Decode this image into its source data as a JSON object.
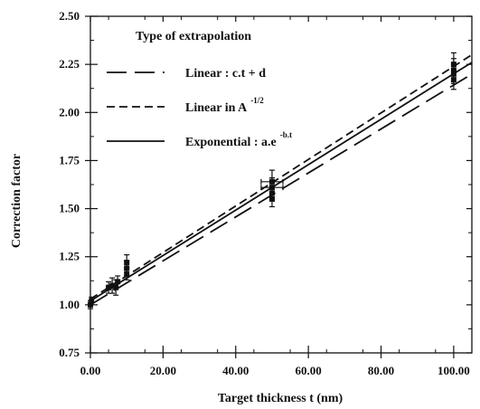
{
  "chart_data": {
    "type": "line",
    "title": "",
    "xlabel": "Target thickness t (nm)",
    "ylabel": "Correction factor",
    "xlim": [
      0,
      105
    ],
    "ylim": [
      0.75,
      2.5
    ],
    "grid": false,
    "legend_position": "top-left",
    "x_ticks": [
      0,
      20,
      40,
      60,
      80,
      100
    ],
    "x_tick_labels": [
      "0.00",
      "20.00",
      "40.00",
      "60.00",
      "80.00",
      "100.00"
    ],
    "y_ticks": [
      0.75,
      1.0,
      1.25,
      1.5,
      1.75,
      2.0,
      2.25,
      2.5
    ],
    "y_tick_labels": [
      "0.75",
      "1.00",
      "1.25",
      "1.50",
      "1.75",
      "2.00",
      "2.25",
      "2.50"
    ],
    "legend": {
      "title": "Type of extrapolation",
      "entries": [
        {
          "label": "Linear : c.t + d",
          "sup": "",
          "style": "long-dash"
        },
        {
          "label": "Linear in A",
          "sup": "-1/2",
          "style": "short-dash"
        },
        {
          "label": "Exponential : a.e",
          "sup": "-b.t",
          "style": "solid"
        }
      ]
    },
    "series": [
      {
        "style": "long-dash",
        "x": [
          0,
          105
        ],
        "y": [
          1.0,
          2.2
        ]
      },
      {
        "style": "short-dash",
        "x": [
          0,
          105
        ],
        "y": [
          1.03,
          2.3
        ]
      },
      {
        "style": "solid",
        "x": [
          0,
          105
        ],
        "y": [
          1.02,
          2.26
        ]
      }
    ],
    "points": [
      {
        "x": 0,
        "y": 1.0,
        "yerr": 0.02,
        "xerr": 0
      },
      {
        "x": 0.3,
        "y": 1.02,
        "yerr": 0.02,
        "xerr": 0
      },
      {
        "x": 5,
        "y": 1.09,
        "yerr": 0.03,
        "xerr": 0.4
      },
      {
        "x": 6,
        "y": 1.1,
        "yerr": 0.04,
        "xerr": 0.5
      },
      {
        "x": 7,
        "y": 1.09,
        "yerr": 0.04,
        "xerr": 0.5
      },
      {
        "x": 7.5,
        "y": 1.12,
        "yerr": 0.03,
        "xerr": 0
      },
      {
        "x": 10,
        "y": 1.16,
        "yerr": 0.03,
        "xerr": 0
      },
      {
        "x": 10,
        "y": 1.19,
        "yerr": 0.04,
        "xerr": 0
      },
      {
        "x": 10,
        "y": 1.22,
        "yerr": 0.04,
        "xerr": 0
      },
      {
        "x": 50,
        "y": 1.55,
        "yerr": 0.04,
        "xerr": 0
      },
      {
        "x": 50,
        "y": 1.58,
        "yerr": 0.04,
        "xerr": 0
      },
      {
        "x": 50,
        "y": 1.61,
        "yerr": 0.05,
        "xerr": 3
      },
      {
        "x": 50,
        "y": 1.64,
        "yerr": 0.06,
        "xerr": 3
      },
      {
        "x": 100,
        "y": 2.17,
        "yerr": 0.05,
        "xerr": 0
      },
      {
        "x": 100,
        "y": 2.2,
        "yerr": 0.05,
        "xerr": 0
      },
      {
        "x": 100,
        "y": 2.22,
        "yerr": 0.06,
        "xerr": 0
      },
      {
        "x": 100,
        "y": 2.25,
        "yerr": 0.06,
        "xerr": 0
      }
    ]
  }
}
